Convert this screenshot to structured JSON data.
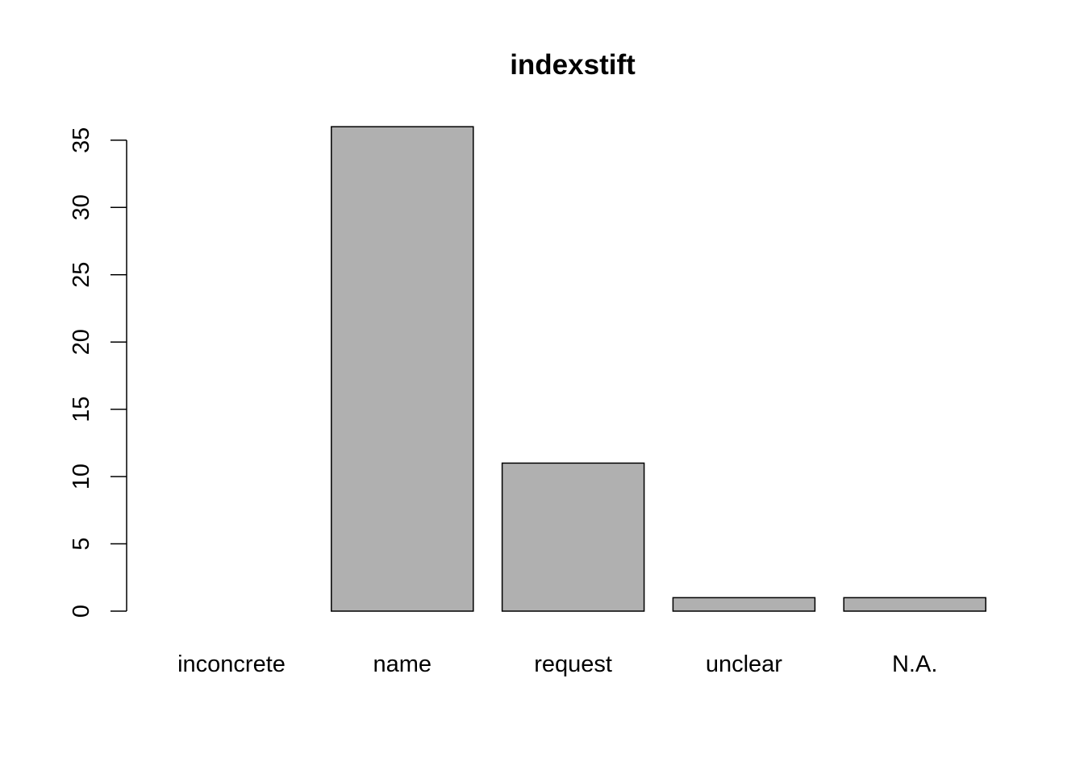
{
  "chart_data": {
    "type": "bar",
    "title": "indexstift",
    "xlabel": "",
    "ylabel": "",
    "categories": [
      "inconcrete",
      "name",
      "request",
      "unclear",
      "N.A."
    ],
    "values": [
      0,
      36,
      11,
      1,
      1
    ],
    "ylim": [
      0,
      36
    ],
    "yticks": [
      0,
      5,
      10,
      15,
      20,
      25,
      30,
      35
    ],
    "bar_color": "#b0b0b0",
    "bar_border_color": "#000000",
    "grid": false,
    "legend": "none"
  }
}
